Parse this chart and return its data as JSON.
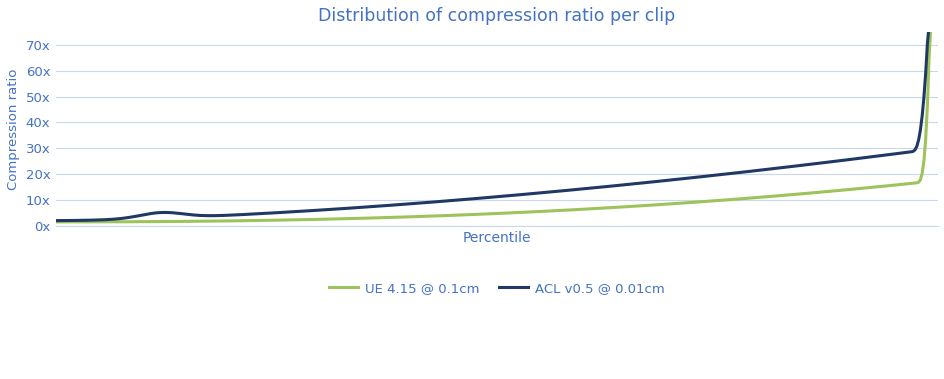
{
  "title": "Distribution of compression ratio per clip",
  "xlabel": "Percentile",
  "ylabel": "Compression ratio",
  "title_color": "#4472c4",
  "xlabel_color": "#4472c4",
  "ylabel_color": "#4472c4",
  "background_color": "#ffffff",
  "grid_color": "#c8d8e8",
  "ylim": [
    0,
    75
  ],
  "yticks": [
    0,
    10,
    20,
    30,
    40,
    50,
    60,
    70
  ],
  "ytick_labels": [
    "0x",
    "10x",
    "20x",
    "30x",
    "40x",
    "50x",
    "60x",
    "70x"
  ],
  "line1_color": "#1f3864",
  "line1_label": "ACL v0.5 @ 0.01cm",
  "line2_color": "#9dc35a",
  "line2_label": "UE 4.15 @ 0.1cm",
  "line_width": 2.2,
  "n_points": 500
}
